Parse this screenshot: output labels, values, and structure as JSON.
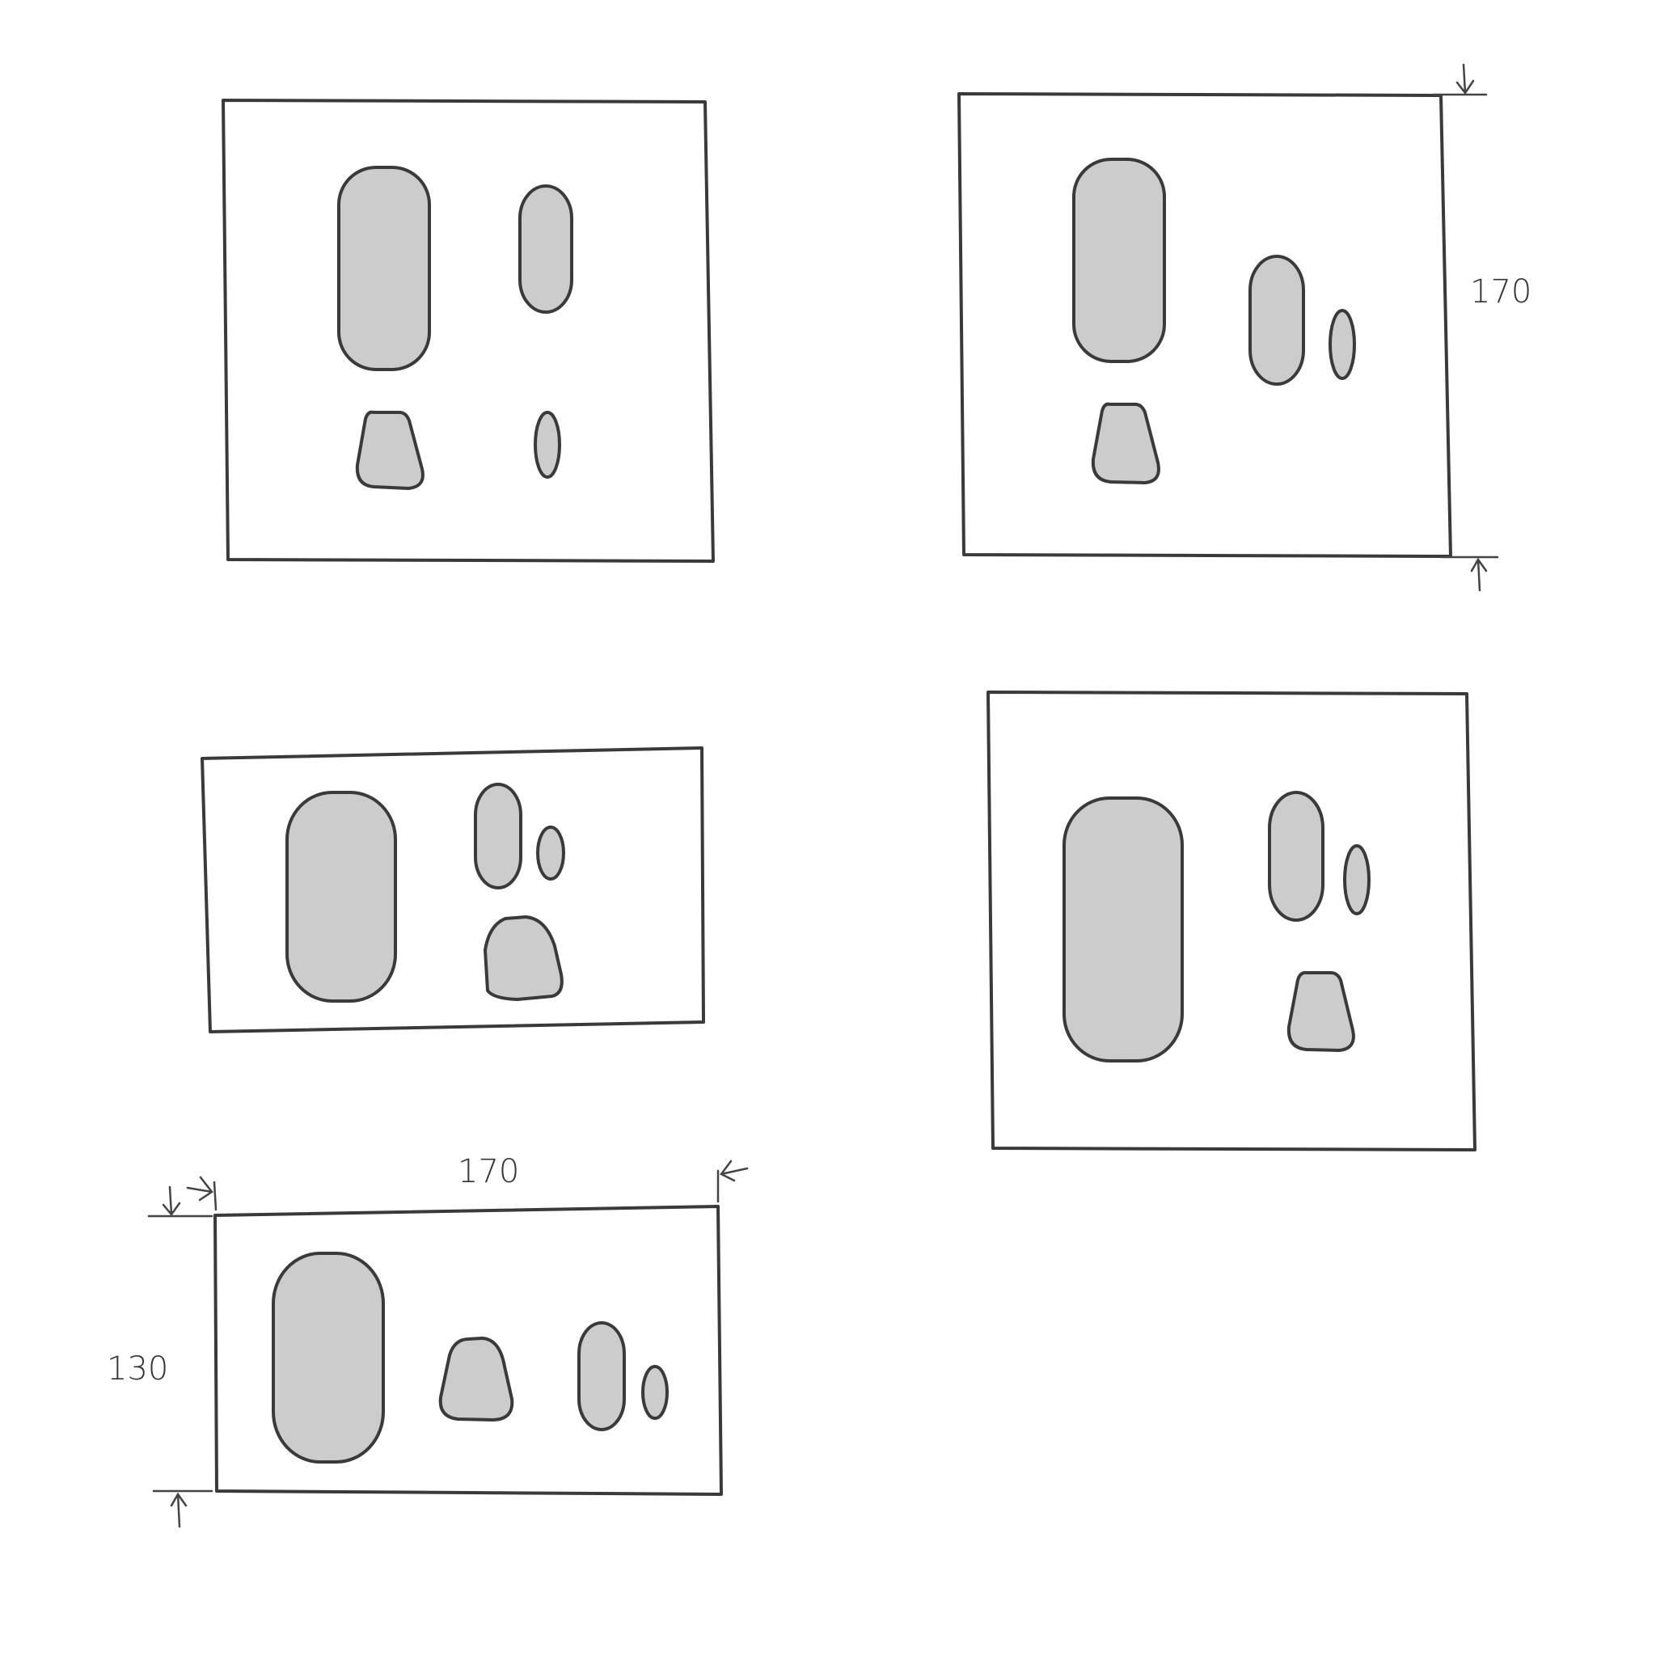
{
  "diagram": {
    "colors": {
      "background": "#ffffff",
      "outline": "#3a3a3a",
      "shape_fill": "#cccccc"
    },
    "sketches": [
      {
        "name": "layout-a",
        "shapes": [
          "tall-rounded-rect",
          "medium-oval",
          "trapezoid",
          "small-oval"
        ]
      },
      {
        "name": "layout-b",
        "shapes": [
          "tall-rounded-rect",
          "medium-oval",
          "small-oval",
          "trapezoid"
        ],
        "dimension_label": "170"
      },
      {
        "name": "layout-c",
        "shapes": [
          "tall-rounded-rect",
          "medium-oval",
          "small-oval",
          "trapezoid"
        ]
      },
      {
        "name": "layout-d",
        "shapes": [
          "tall-rounded-rect",
          "medium-oval",
          "small-oval",
          "trapezoid"
        ]
      },
      {
        "name": "layout-e",
        "shapes": [
          "tall-rounded-rect",
          "trapezoid",
          "medium-oval",
          "small-oval"
        ],
        "width_label": "170",
        "height_label": "130"
      }
    ]
  }
}
